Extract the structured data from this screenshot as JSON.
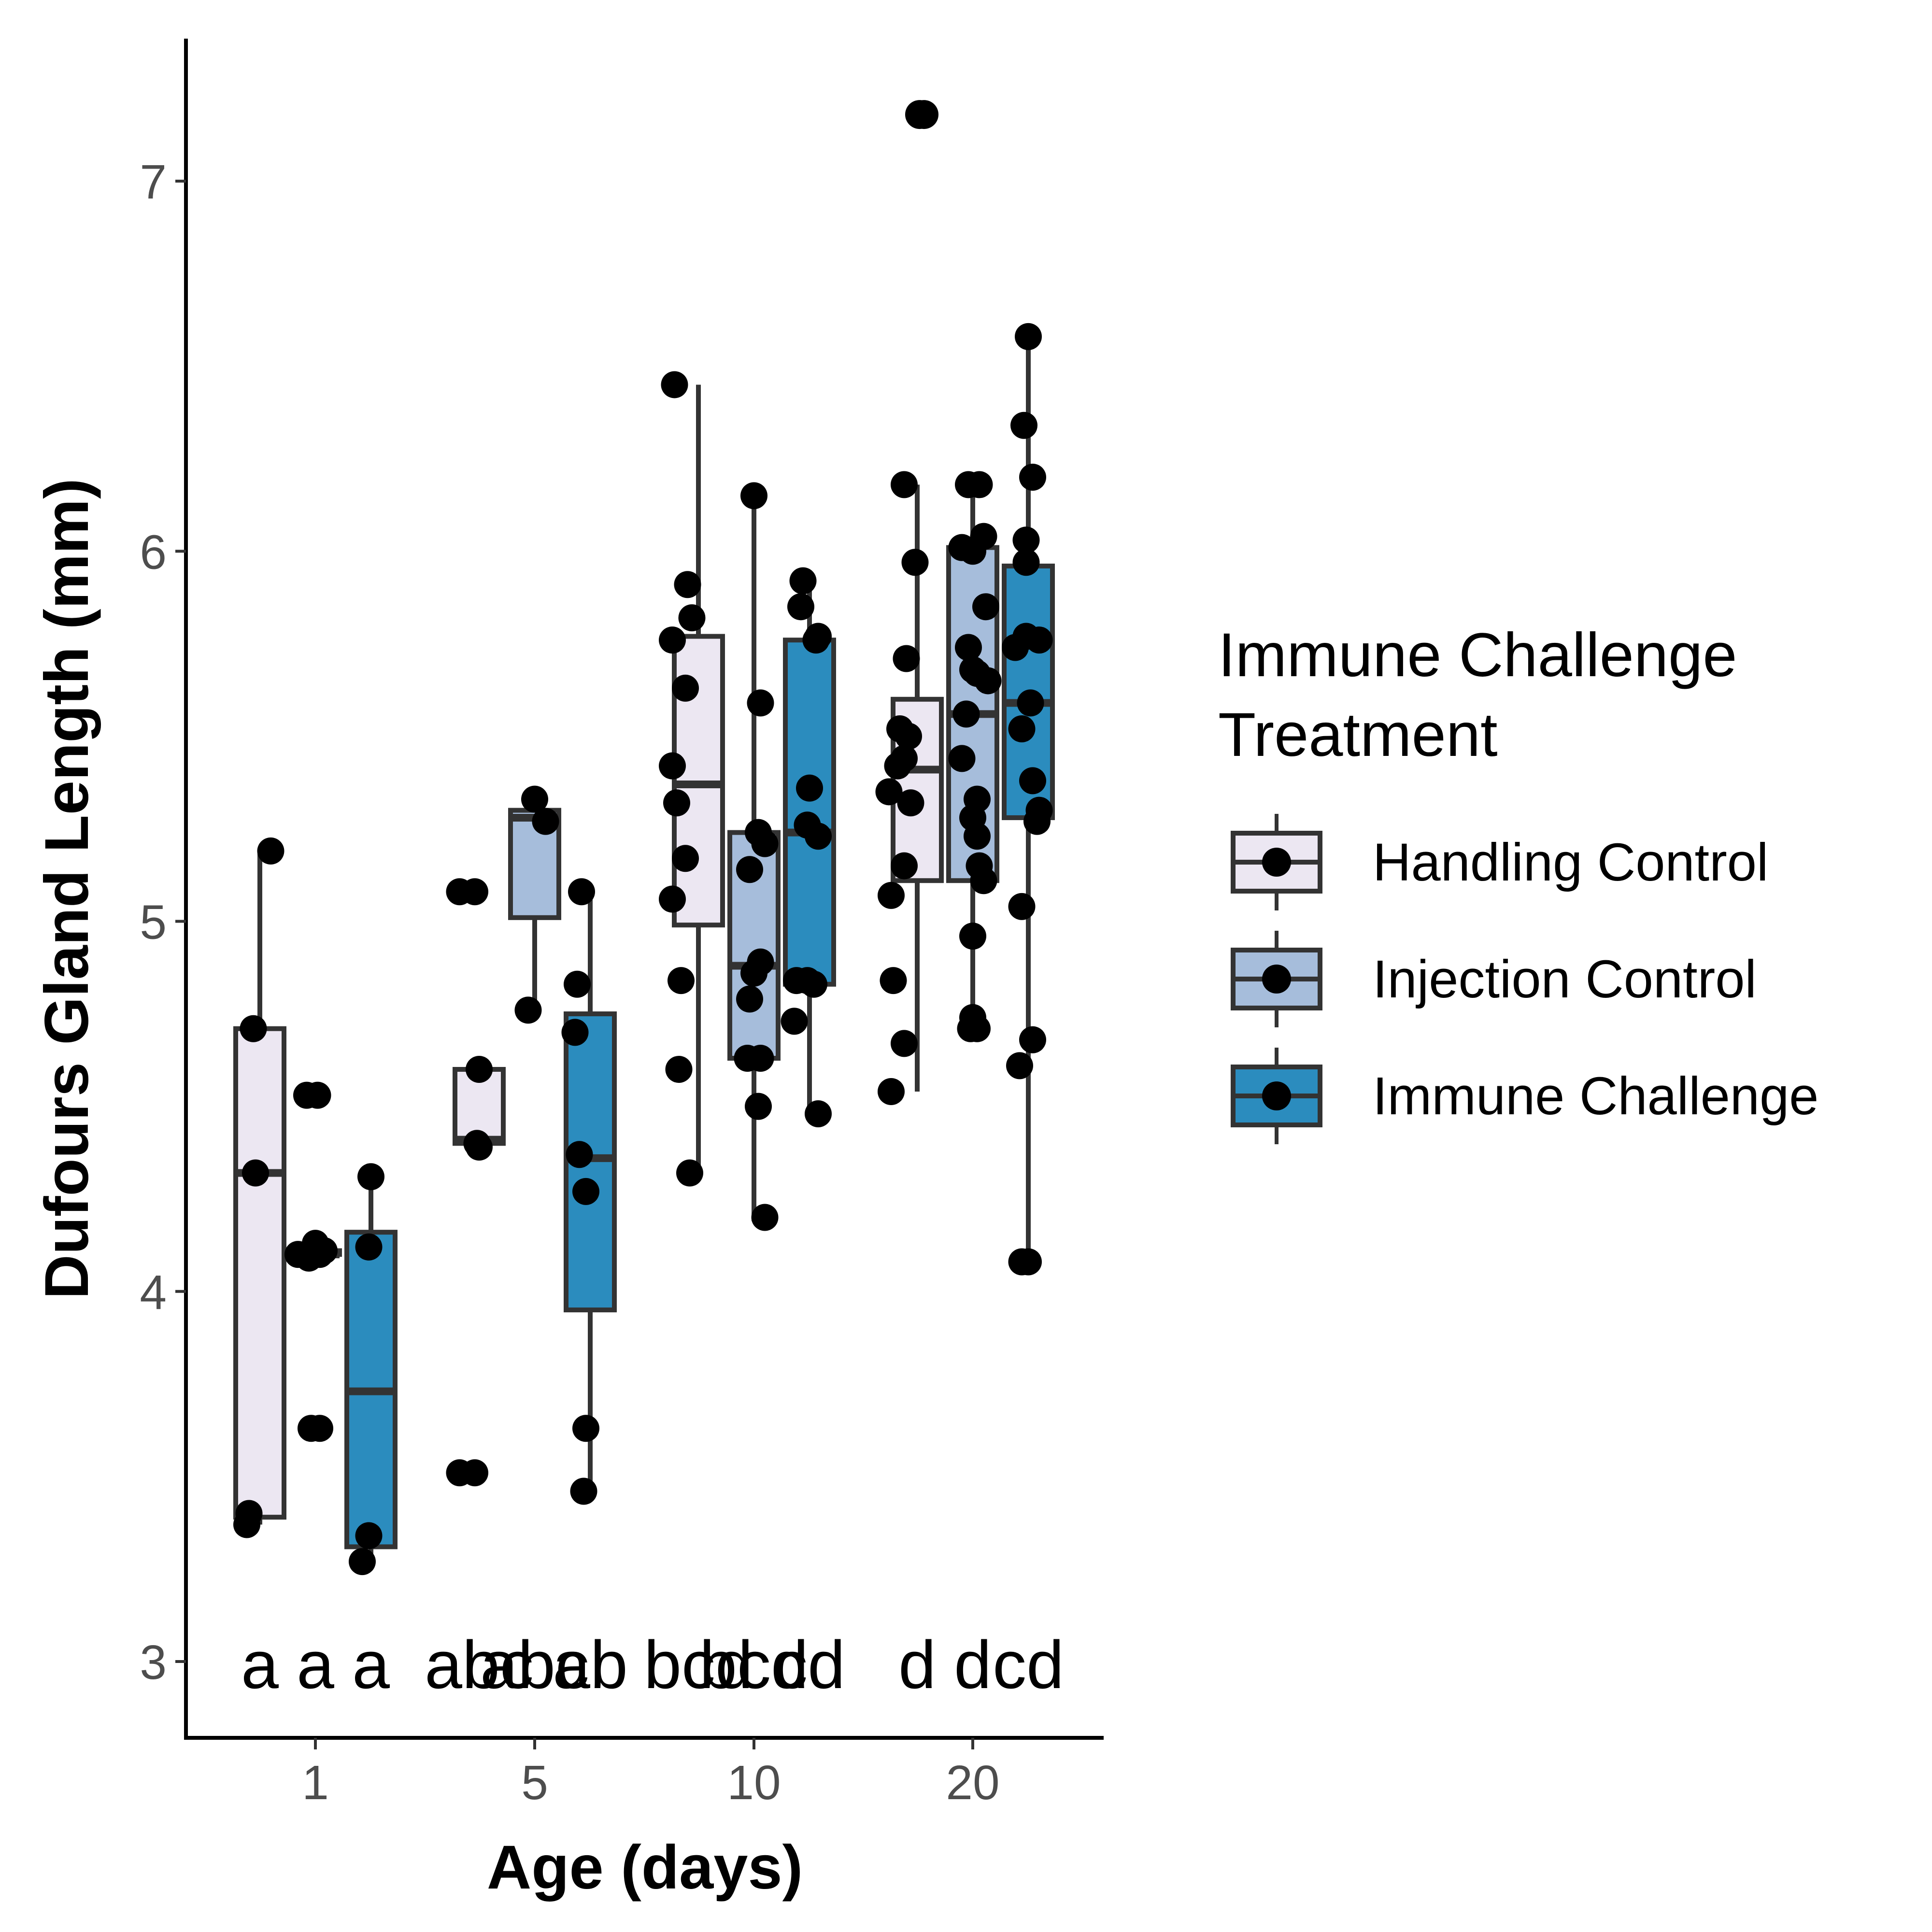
{
  "chart_data": {
    "type": "boxplot",
    "xlabel": "Age (days)",
    "ylabel": "Dufours Gland Length (mm)",
    "categories": [
      "1",
      "5",
      "10",
      "20"
    ],
    "ylim": [
      2.8,
      7.4
    ],
    "y_ticks": [
      "3",
      "4",
      "5",
      "6",
      "7"
    ],
    "grid": false,
    "legend": {
      "title_lines": [
        "Immune Challenge",
        "Treatment"
      ],
      "position": "right"
    },
    "series": [
      {
        "name": "Handling Control",
        "color": "#ece7f2",
        "boxes": [
          {
            "category": "1",
            "min": 3.37,
            "q1": 3.39,
            "median": 4.32,
            "q3": 4.71,
            "max": 5.19,
            "letter": "a",
            "points": [
              [
                -0.03,
                4.71
              ],
              [
                -0.02,
                4.32
              ],
              [
                0.05,
                5.19
              ],
              [
                -0.05,
                3.4
              ],
              [
                -0.06,
                3.37
              ]
            ]
          },
          {
            "category": "5",
            "min": 4.4,
            "q1": 4.4,
            "median": 4.41,
            "q3": 4.6,
            "max": 4.61,
            "letter": "abc",
            "points": [
              [
                -0.09,
                5.08
              ],
              [
                -0.02,
                5.08
              ],
              [
                0.0,
                4.6
              ],
              [
                -0.01,
                4.4
              ],
              [
                0.0,
                4.39
              ],
              [
                -0.09,
                3.51
              ],
              [
                -0.02,
                3.51
              ]
            ]
          },
          {
            "category": "10",
            "min": 4.32,
            "q1": 4.99,
            "median": 5.37,
            "q3": 5.77,
            "max": 6.45,
            "letter": "bcd",
            "points": [
              [
                -0.11,
                6.45
              ],
              [
                -0.05,
                5.91
              ],
              [
                -0.03,
                5.82
              ],
              [
                -0.12,
                5.76
              ],
              [
                -0.06,
                5.63
              ],
              [
                -0.12,
                5.42
              ],
              [
                -0.1,
                5.32
              ],
              [
                -0.06,
                5.17
              ],
              [
                -0.12,
                5.06
              ],
              [
                -0.08,
                4.84
              ],
              [
                -0.09,
                4.6
              ],
              [
                -0.04,
                4.32
              ]
            ]
          }
        ]
      },
      {
        "name": "Injection Control",
        "color": "#a6bddb",
        "boxes": [
          {
            "category": "1",
            "min": 4.1,
            "q1": 4.1,
            "median": 4.1,
            "q3": 4.11,
            "max": 4.11,
            "letter": "a",
            "points": [
              [
                -0.04,
                4.53
              ],
              [
                0.01,
                4.53
              ],
              [
                -0.04,
                4.1
              ],
              [
                0.0,
                4.13
              ],
              [
                0.02,
                4.1
              ],
              [
                -0.08,
                4.1
              ],
              [
                -0.03,
                4.09
              ],
              [
                0.04,
                4.11
              ],
              [
                -0.02,
                3.63
              ],
              [
                0.02,
                3.63
              ]
            ]
          },
          {
            "category": "5",
            "min": 4.76,
            "q1": 5.01,
            "median": 5.28,
            "q3": 5.3,
            "max": 5.33,
            "letter": "abc",
            "points": [
              [
                0.0,
                5.33
              ],
              [
                0.05,
                5.27
              ],
              [
                -0.03,
                4.76
              ]
            ]
          },
          {
            "category": "10",
            "min": 4.19,
            "q1": 4.63,
            "median": 4.88,
            "q3": 5.24,
            "max": 6.15,
            "letter": "bcd",
            "points": [
              [
                0.0,
                6.15
              ],
              [
                0.03,
                5.59
              ],
              [
                0.02,
                5.24
              ],
              [
                0.05,
                5.21
              ],
              [
                -0.02,
                5.14
              ],
              [
                0.03,
                4.89
              ],
              [
                0.0,
                4.86
              ],
              [
                -0.02,
                4.79
              ],
              [
                -0.03,
                4.63
              ],
              [
                0.03,
                4.63
              ],
              [
                0.02,
                4.5
              ],
              [
                0.05,
                4.2
              ]
            ]
          },
          {
            "category": "20",
            "min": 4.71,
            "q1": 5.11,
            "median": 5.56,
            "q3": 6.01,
            "max": 6.18,
            "letter": "d",
            "points": [
              [
                -0.02,
                6.18
              ],
              [
                0.03,
                6.18
              ],
              [
                0.05,
                6.04
              ],
              [
                -0.05,
                6.01
              ],
              [
                0.0,
                6.0
              ],
              [
                0.06,
                5.85
              ],
              [
                -0.02,
                5.74
              ],
              [
                0.0,
                5.68
              ],
              [
                0.07,
                5.65
              ],
              [
                0.02,
                5.67
              ],
              [
                -0.03,
                5.56
              ],
              [
                0.02,
                5.33
              ],
              [
                0.0,
                5.28
              ],
              [
                0.02,
                5.23
              ],
              [
                -0.05,
                5.44
              ],
              [
                0.03,
                5.15
              ],
              [
                0.05,
                5.11
              ],
              [
                0.0,
                4.96
              ],
              [
                0.0,
                4.74
              ],
              [
                0.02,
                4.71
              ],
              [
                -0.01,
                4.71
              ]
            ]
          }
        ]
      },
      {
        "name": "Immune Challenge",
        "color": "#2b8cbe",
        "boxes": [
          {
            "category": "1",
            "min": 3.26,
            "q1": 3.31,
            "median": 3.73,
            "q3": 4.16,
            "max": 4.31,
            "letter": "a",
            "points": [
              [
                0.0,
                4.31
              ],
              [
                -0.01,
                4.12
              ],
              [
                -0.01,
                3.34
              ],
              [
                -0.04,
                3.27
              ]
            ]
          },
          {
            "category": "5",
            "min": 3.46,
            "q1": 3.95,
            "median": 4.36,
            "q3": 4.75,
            "max": 5.08,
            "letter": "ab",
            "points": [
              [
                -0.04,
                5.08
              ],
              [
                -0.06,
                4.83
              ],
              [
                -0.07,
                4.7
              ],
              [
                -0.05,
                4.37
              ],
              [
                -0.02,
                4.27
              ],
              [
                -0.02,
                3.63
              ],
              [
                -0.03,
                3.46
              ]
            ]
          },
          {
            "category": "10",
            "min": 4.48,
            "q1": 4.83,
            "median": 5.24,
            "q3": 5.76,
            "max": 5.92,
            "letter": "cd",
            "points": [
              [
                -0.03,
                5.92
              ],
              [
                -0.04,
                5.85
              ],
              [
                0.04,
                5.77
              ],
              [
                0.03,
                5.76
              ],
              [
                0.0,
                5.36
              ],
              [
                -0.01,
                5.26
              ],
              [
                0.04,
                5.23
              ],
              [
                -0.06,
                4.84
              ],
              [
                -0.01,
                4.84
              ],
              [
                0.02,
                4.83
              ],
              [
                -0.07,
                4.73
              ],
              [
                0.04,
                4.48
              ]
            ]
          },
          {
            "category": "20",
            "min": 4.08,
            "q1": 5.28,
            "median": 5.59,
            "q3": 5.96,
            "max": 6.58,
            "letter": "cd",
            "points": [
              [
                0.0,
                6.58
              ],
              [
                -0.02,
                6.34
              ],
              [
                0.02,
                6.2
              ],
              [
                -0.01,
                6.03
              ],
              [
                -0.01,
                5.97
              ],
              [
                -0.06,
                5.74
              ],
              [
                0.05,
                5.76
              ],
              [
                -0.01,
                5.77
              ],
              [
                0.01,
                5.59
              ],
              [
                -0.03,
                5.52
              ],
              [
                0.02,
                5.38
              ],
              [
                0.05,
                5.3
              ],
              [
                0.04,
                5.27
              ],
              [
                -0.03,
                5.04
              ],
              [
                0.02,
                4.68
              ],
              [
                -0.04,
                4.61
              ],
              [
                -0.03,
                4.08
              ],
              [
                0.0,
                4.08
              ]
            ]
          }
        ]
      }
    ],
    "extra_points": [
      {
        "category": "20",
        "series": "Handling Control",
        "y": 7.18,
        "dx": -0.1
      },
      {
        "category": "20",
        "series": "Handling Control",
        "y": 7.18,
        "dx": -0.08
      }
    ],
    "handling_20_box": {
      "min": 4.54,
      "q1": 5.11,
      "median": 5.41,
      "q3": 5.6,
      "max": 6.18,
      "letter": "d",
      "points": [
        [
          -0.06,
          6.18
        ],
        [
          -0.01,
          5.97
        ],
        [
          -0.05,
          5.71
        ],
        [
          -0.08,
          5.52
        ],
        [
          -0.04,
          5.5
        ],
        [
          -0.06,
          5.44
        ],
        [
          -0.09,
          5.42
        ],
        [
          -0.13,
          5.35
        ],
        [
          -0.03,
          5.32
        ],
        [
          -0.06,
          5.15
        ],
        [
          -0.12,
          5.07
        ],
        [
          -0.11,
          4.84
        ],
        [
          -0.06,
          4.67
        ],
        [
          -0.12,
          4.54
        ]
      ]
    }
  }
}
